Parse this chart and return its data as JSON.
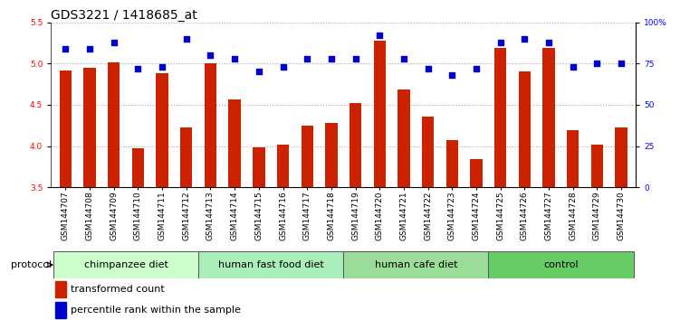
{
  "title": "GDS3221 / 1418685_at",
  "samples": [
    "GSM144707",
    "GSM144708",
    "GSM144709",
    "GSM144710",
    "GSM144711",
    "GSM144712",
    "GSM144713",
    "GSM144714",
    "GSM144715",
    "GSM144716",
    "GSM144717",
    "GSM144718",
    "GSM144719",
    "GSM144720",
    "GSM144721",
    "GSM144722",
    "GSM144723",
    "GSM144724",
    "GSM144725",
    "GSM144726",
    "GSM144727",
    "GSM144728",
    "GSM144729",
    "GSM144730"
  ],
  "bar_values": [
    4.92,
    4.95,
    5.02,
    3.97,
    4.88,
    4.22,
    5.0,
    4.56,
    3.98,
    4.02,
    4.25,
    4.28,
    4.52,
    5.28,
    4.69,
    4.36,
    4.07,
    3.84,
    5.19,
    4.91,
    5.19,
    4.19,
    4.02,
    4.22
  ],
  "percentile_values": [
    84,
    84,
    88,
    72,
    73,
    90,
    80,
    78,
    70,
    73,
    78,
    78,
    78,
    92,
    78,
    72,
    68,
    72,
    88,
    90,
    88,
    73,
    75,
    75
  ],
  "groups": [
    {
      "name": "chimpanzee diet",
      "start": 0,
      "end": 5,
      "color": "#ccffcc"
    },
    {
      "name": "human fast food diet",
      "start": 6,
      "end": 11,
      "color": "#aaeebb"
    },
    {
      "name": "human cafe diet",
      "start": 12,
      "end": 17,
      "color": "#99dd99"
    },
    {
      "name": "control",
      "start": 18,
      "end": 23,
      "color": "#66cc66"
    }
  ],
  "ylim_left": [
    3.5,
    5.5
  ],
  "ylim_right": [
    0,
    100
  ],
  "yticks_left": [
    3.5,
    4.0,
    4.5,
    5.0,
    5.5
  ],
  "yticks_right": [
    0,
    25,
    50,
    75,
    100
  ],
  "ytick_labels_right": [
    "0",
    "25",
    "50",
    "75",
    "100%"
  ],
  "bar_color": "#cc2200",
  "dot_color": "#0000cc",
  "grid_color": "#aaaaaa",
  "bg_color": "#ffffff",
  "title_fontsize": 10,
  "tick_fontsize": 6.5,
  "label_fontsize": 8,
  "legend_fontsize": 8,
  "group_label_fontsize": 8
}
